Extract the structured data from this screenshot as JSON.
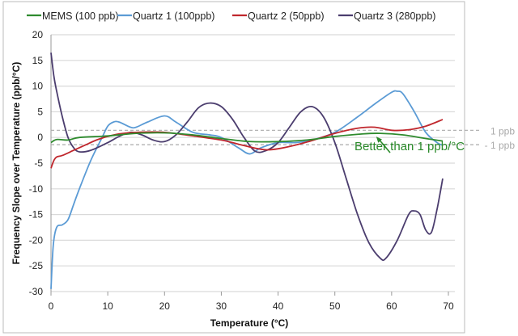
{
  "chart_data": {
    "type": "line",
    "title": "",
    "xlabel": "Temperature (°C)",
    "ylabel": "Frequency Slope over Temperature (ppb/°C)",
    "xlim": [
      0,
      70
    ],
    "ylim": [
      -30,
      20
    ],
    "xticks": [
      0,
      10,
      20,
      30,
      40,
      50,
      60,
      70
    ],
    "yticks": [
      20,
      15,
      10,
      5,
      0,
      -5,
      -10,
      -15,
      -20,
      -25,
      -30
    ],
    "grid": "horizontal",
    "legend": "top",
    "series": [
      {
        "name": "MEMS (100 ppb)",
        "color": "#2e8b2e",
        "x": [
          0,
          1,
          3,
          5,
          10,
          15,
          20,
          25,
          30,
          35,
          40,
          45,
          50,
          55,
          58,
          62,
          66,
          69
        ],
        "y": [
          -1,
          -0.4,
          -0.5,
          0,
          0.3,
          0.8,
          0.9,
          0.5,
          -0.2,
          -0.8,
          -0.8,
          -0.5,
          0.2,
          0.7,
          0.8,
          0.5,
          -0.2,
          -0.7
        ]
      },
      {
        "name": "Quartz 1 (100ppb)",
        "color": "#5b9bd5",
        "x": [
          0,
          0.4,
          1,
          2,
          3,
          4,
          5,
          7,
          9,
          10,
          11,
          12,
          14,
          15,
          17,
          20,
          22,
          25,
          28,
          30,
          33,
          35,
          37,
          40,
          43,
          46,
          50,
          54,
          57,
          60,
          61,
          62,
          64,
          66,
          68,
          69
        ],
        "y": [
          -29.5,
          -21,
          -17.5,
          -17,
          -16,
          -13,
          -10,
          -4.5,
          0,
          2.2,
          3,
          3,
          2,
          2,
          3,
          4.2,
          3,
          1,
          0.5,
          0,
          -2,
          -3.2,
          -2,
          -1,
          -1,
          -0.5,
          1,
          4,
          6.5,
          8.8,
          9,
          8.5,
          5,
          1,
          -1,
          -1.5
        ]
      },
      {
        "name": "Quartz 2 (50ppb)",
        "color": "#c0272d",
        "x": [
          0,
          0.5,
          1,
          2,
          4,
          6,
          8,
          10,
          12,
          15,
          20,
          25,
          30,
          33,
          36,
          38,
          40,
          43,
          46,
          50,
          54,
          57,
          60,
          63,
          66,
          69
        ],
        "y": [
          -6,
          -4.5,
          -3.8,
          -3.5,
          -2.5,
          -1.5,
          -0.5,
          0.2,
          0.7,
          1,
          1,
          0.3,
          -0.5,
          -1.3,
          -2.1,
          -2.4,
          -2.2,
          -1.5,
          -0.6,
          0.8,
          1.8,
          2,
          1.4,
          1.5,
          2.2,
          3.5
        ]
      },
      {
        "name": "Quartz 3 (280ppb)",
        "color": "#4b3d6e",
        "x": [
          0,
          0.5,
          1,
          2,
          3,
          4,
          5,
          7,
          10,
          12,
          14,
          16,
          18,
          20,
          22,
          24,
          26,
          28,
          30,
          32,
          34,
          36,
          38,
          40,
          42,
          44,
          46,
          48,
          50,
          52,
          54,
          56,
          58,
          59,
          61,
          63,
          64,
          65,
          66,
          67,
          68,
          69
        ],
        "y": [
          16.5,
          12,
          9,
          4,
          0,
          -2,
          -2.8,
          -2.5,
          -1,
          0.2,
          1,
          0.5,
          -0.5,
          -0.8,
          0.5,
          3,
          5.8,
          6.7,
          6,
          3.5,
          0,
          -2.7,
          -2.5,
          -1,
          2,
          5,
          6,
          4,
          -1,
          -8,
          -15,
          -20.5,
          -23.5,
          -23.5,
          -20,
          -15,
          -14.3,
          -15,
          -18,
          -18.5,
          -14,
          -8
        ]
      }
    ],
    "reference_lines": [
      {
        "label": "1 ppb",
        "y": 1.4
      },
      {
        "label": "- 1 ppb",
        "y": -1.4
      }
    ],
    "annotation": {
      "text": "Better than 1 ppb/°C",
      "color": "#2a8a2a",
      "points_to": {
        "x": 57,
        "y": 0.8
      }
    }
  }
}
